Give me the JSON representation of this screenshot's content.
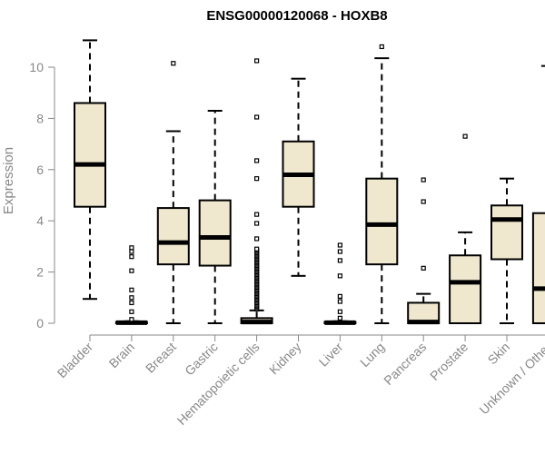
{
  "chart_data": {
    "type": "boxplot",
    "title": "ENSG00000120068 - HOXB8",
    "xlabel": "",
    "ylabel": "Expression",
    "ylim": [
      0,
      11.2
    ],
    "yticks": [
      0,
      2,
      4,
      6,
      8,
      10
    ],
    "grid": false,
    "legend": "none",
    "box_fill": "#efe8cf",
    "box_stroke": "#000000",
    "axis_color": "#888888",
    "categories": [
      "Bladder",
      "Brain",
      "Breast",
      "Gastric",
      "Hematopoietic cells",
      "Kidney",
      "Liver",
      "Lung",
      "Pancreas",
      "Prostate",
      "Skin",
      "Unknown / Other"
    ],
    "boxes": [
      {
        "category": "Bladder",
        "whisker_low": 0.95,
        "q1": 4.55,
        "median": 6.2,
        "q3": 8.6,
        "whisker_high": 11.05,
        "outliers": []
      },
      {
        "category": "Brain",
        "whisker_low": 0,
        "q1": 0,
        "median": 0.02,
        "q3": 0.05,
        "whisker_high": 0.08,
        "outliers": [
          0.15,
          0.45,
          0.8,
          1.0,
          1.3,
          2.05,
          2.6,
          2.8,
          2.95
        ]
      },
      {
        "category": "Breast",
        "whisker_low": 0,
        "q1": 2.3,
        "median": 3.15,
        "q3": 4.5,
        "whisker_high": 7.5,
        "outliers": [
          10.15
        ]
      },
      {
        "category": "Gastric",
        "whisker_low": 0,
        "q1": 2.25,
        "median": 3.35,
        "q3": 4.8,
        "whisker_high": 8.3,
        "outliers": []
      },
      {
        "category": "Hematopoietic cells",
        "whisker_low": 0,
        "q1": 0,
        "median": 0.05,
        "q3": 0.2,
        "whisker_high": 0.5,
        "outliers": [
          0.55,
          0.6,
          0.65,
          0.7,
          0.75,
          0.8,
          0.85,
          0.9,
          0.95,
          1.0,
          1.05,
          1.1,
          1.15,
          1.2,
          1.25,
          1.3,
          1.35,
          1.4,
          1.45,
          1.5,
          1.55,
          1.6,
          1.65,
          1.7,
          1.75,
          1.8,
          1.85,
          1.9,
          1.95,
          2.0,
          2.05,
          2.1,
          2.15,
          2.2,
          2.25,
          2.3,
          2.35,
          2.4,
          2.45,
          2.5,
          2.55,
          2.6,
          2.65,
          2.7,
          2.75,
          2.8,
          2.85,
          2.9,
          3.3,
          3.9,
          4.25,
          5.65,
          6.35,
          8.05,
          10.25
        ]
      },
      {
        "category": "Kidney",
        "whisker_low": 1.85,
        "q1": 4.55,
        "median": 5.8,
        "q3": 7.1,
        "whisker_high": 9.55,
        "outliers": []
      },
      {
        "category": "Liver",
        "whisker_low": 0,
        "q1": 0,
        "median": 0.02,
        "q3": 0.05,
        "whisker_high": 0.08,
        "outliers": [
          0.2,
          0.45,
          0.85,
          1.05,
          1.85,
          2.45,
          2.8,
          3.05
        ]
      },
      {
        "category": "Lung",
        "whisker_low": 0,
        "q1": 2.3,
        "median": 3.85,
        "q3": 5.65,
        "whisker_high": 10.35,
        "outliers": [
          10.8
        ]
      },
      {
        "category": "Pancreas",
        "whisker_low": 0,
        "q1": 0,
        "median": 0.05,
        "q3": 0.8,
        "whisker_high": 1.15,
        "outliers": [
          2.15,
          4.75,
          5.6
        ]
      },
      {
        "category": "Prostate",
        "whisker_low": 0,
        "q1": 0,
        "median": 1.6,
        "q3": 2.65,
        "whisker_high": 3.55,
        "outliers": [
          7.3
        ]
      },
      {
        "category": "Skin",
        "whisker_low": 0,
        "q1": 2.5,
        "median": 4.05,
        "q3": 4.6,
        "whisker_high": 5.65,
        "outliers": []
      },
      {
        "category": "Unknown / Other",
        "whisker_low": 0,
        "q1": 0,
        "median": 1.35,
        "q3": 4.3,
        "whisker_high": 10.05,
        "outliers": []
      }
    ]
  }
}
